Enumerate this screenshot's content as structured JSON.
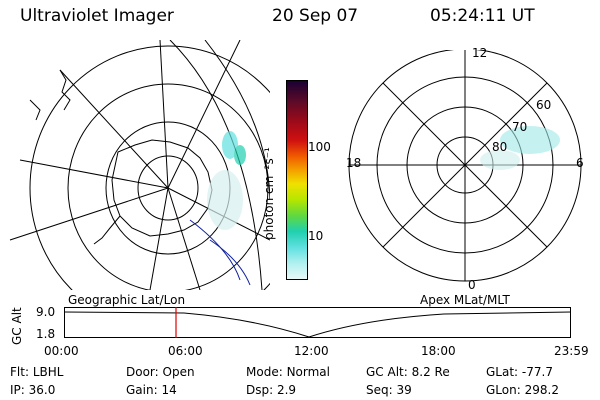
{
  "header": {
    "instrument": "Ultraviolet Imager",
    "date": "20 Sep 07",
    "time": "05:24:11 UT"
  },
  "colorbar": {
    "unit_label": "photon cm⁻²s⁻¹",
    "ticks": [
      "100",
      "10"
    ],
    "colors": [
      "#1a0033",
      "#5a0a28",
      "#9a0a1a",
      "#d01010",
      "#f05a00",
      "#f5a000",
      "#f0e000",
      "#b6e600",
      "#60d840",
      "#20d0b0",
      "#60e0e0",
      "#b0f0f0",
      "#e8f8f8"
    ]
  },
  "polar_plot": {
    "mlt_labels": {
      "top": "12",
      "left": "18",
      "right": "6",
      "bottom": "0"
    },
    "lat_labels": [
      "60",
      "70",
      "80"
    ]
  },
  "timeline": {
    "left_label": "Geographic Lat/Lon",
    "right_label": "Apex MLat/MLT",
    "axis_label": "GC Alt",
    "y_ticks": [
      "9.0",
      "1.8"
    ],
    "x_ticks": [
      "00:00",
      "06:00",
      "12:00",
      "18:00",
      "23:59"
    ],
    "marker_color": "#e00000"
  },
  "footer": {
    "row1": [
      {
        "label": "Flt:",
        "value": "LBHL"
      },
      {
        "label": "Door:",
        "value": "Open"
      },
      {
        "label": "Mode:",
        "value": "Normal"
      },
      {
        "label": "GC Alt:",
        "value": "8.2 Re"
      },
      {
        "label": "GLat:",
        "value": "-77.7"
      }
    ],
    "row2": [
      {
        "label": "IP:",
        "value": "36.0"
      },
      {
        "label": "Gain:",
        "value": "14"
      },
      {
        "label": "Dsp:",
        "value": "2.9"
      },
      {
        "label": "Seq:",
        "value": "39"
      },
      {
        "label": "GLon:",
        "value": "298.2"
      }
    ]
  }
}
